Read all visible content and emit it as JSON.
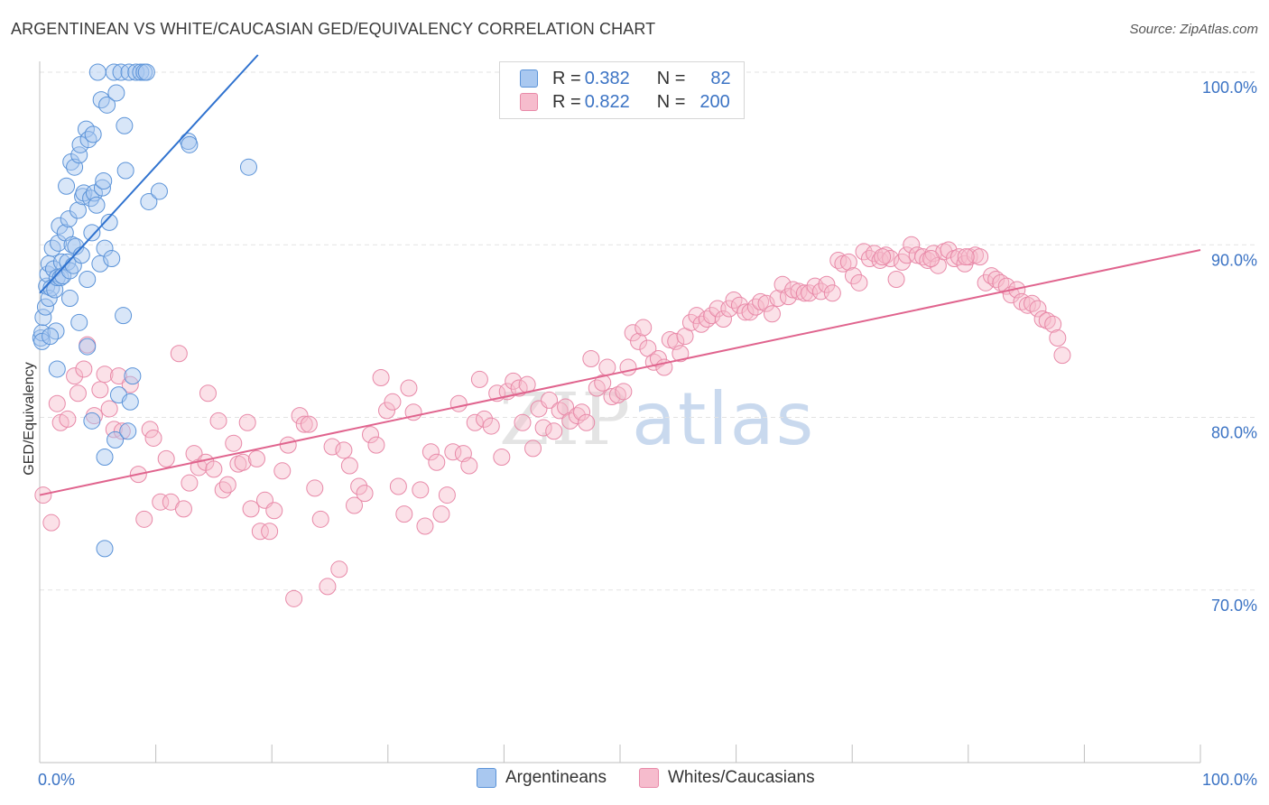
{
  "header": {
    "title": "ARGENTINEAN VS WHITE/CAUCASIAN GED/EQUIVALENCY CORRELATION CHART",
    "source": "Source: ZipAtlas.com"
  },
  "watermark": {
    "zip": "ZIP",
    "atlas": "atlas"
  },
  "legend": {
    "rows": [
      {
        "r_label": "R = ",
        "r_value": "0.382",
        "n_label": "N = ",
        "n_value": "82"
      },
      {
        "r_label": "R = ",
        "r_value": "0.822",
        "n_label": "N = ",
        "n_value": "200"
      }
    ]
  },
  "bottom_legend": {
    "series_a": "Argentineans",
    "series_b": "Whites/Caucasians"
  },
  "colors": {
    "blue_fill": "#a9c8f0",
    "blue_stroke": "#5b93d8",
    "blue_line": "#2f72cf",
    "pink_fill": "#f6bccd",
    "pink_stroke": "#e889a8",
    "pink_line": "#e0648e",
    "grid": "#e3e3e3",
    "tick_text": "#3b73c4"
  },
  "chart_data": {
    "type": "scatter",
    "title": "ARGENTINEAN VS WHITE/CAUCASIAN GED/EQUIVALENCY CORRELATION CHART",
    "xlabel": "",
    "ylabel": "GED/Equivalency",
    "xlim": [
      0,
      100
    ],
    "ylim": [
      60,
      100
    ],
    "x_tick_labels": {
      "min": "0.0%",
      "max": "100.0%"
    },
    "y_ticks": [
      {
        "value": 100,
        "label": "100.0%"
      },
      {
        "value": 90,
        "label": "90.0%"
      },
      {
        "value": 80,
        "label": "80.0%"
      },
      {
        "value": 70,
        "label": "70.0%"
      }
    ],
    "grid": true,
    "legend_position": "top-center",
    "series": [
      {
        "name": "Argentineans",
        "r": 0.382,
        "n": 82,
        "trend": {
          "x0": 0,
          "y0": 87.2,
          "x1": 18.8,
          "y1": 101.0
        },
        "points": [
          [
            0.1,
            84.6
          ],
          [
            0.2,
            84.9
          ],
          [
            0.3,
            85.8
          ],
          [
            0.5,
            86.4
          ],
          [
            0.6,
            87.6
          ],
          [
            0.7,
            88.3
          ],
          [
            0.8,
            88.9
          ],
          [
            0.8,
            86.9
          ],
          [
            1.0,
            87.5
          ],
          [
            1.1,
            89.8
          ],
          [
            1.2,
            88.6
          ],
          [
            1.3,
            87.4
          ],
          [
            1.5,
            88.1
          ],
          [
            1.6,
            90.1
          ],
          [
            1.7,
            91.1
          ],
          [
            1.8,
            88.1
          ],
          [
            1.9,
            89.0
          ],
          [
            2.0,
            88.2
          ],
          [
            2.2,
            90.7
          ],
          [
            2.3,
            93.4
          ],
          [
            2.4,
            89.0
          ],
          [
            2.5,
            91.5
          ],
          [
            2.6,
            88.5
          ],
          [
            2.7,
            94.8
          ],
          [
            2.8,
            90.0
          ],
          [
            2.9,
            88.8
          ],
          [
            3.0,
            94.5
          ],
          [
            3.1,
            89.9
          ],
          [
            3.3,
            92.0
          ],
          [
            3.4,
            95.2
          ],
          [
            3.5,
            95.8
          ],
          [
            3.6,
            89.4
          ],
          [
            3.7,
            92.8
          ],
          [
            3.8,
            93.0
          ],
          [
            4.0,
            96.7
          ],
          [
            4.1,
            88.0
          ],
          [
            4.2,
            96.1
          ],
          [
            4.4,
            92.7
          ],
          [
            4.5,
            90.7
          ],
          [
            4.6,
            96.4
          ],
          [
            4.7,
            93.0
          ],
          [
            4.9,
            92.3
          ],
          [
            5.0,
            100.0
          ],
          [
            5.2,
            88.9
          ],
          [
            5.3,
            98.4
          ],
          [
            5.4,
            93.3
          ],
          [
            5.5,
            93.7
          ],
          [
            5.6,
            89.8
          ],
          [
            5.8,
            98.1
          ],
          [
            6.0,
            91.3
          ],
          [
            6.2,
            89.2
          ],
          [
            6.4,
            100.0
          ],
          [
            6.6,
            98.8
          ],
          [
            7.0,
            100.0
          ],
          [
            7.3,
            96.9
          ],
          [
            7.4,
            94.3
          ],
          [
            7.7,
            100.0
          ],
          [
            8.3,
            100.0
          ],
          [
            8.7,
            100.0
          ],
          [
            9.0,
            100.0
          ],
          [
            9.2,
            100.0
          ],
          [
            9.4,
            92.5
          ],
          [
            10.3,
            93.1
          ],
          [
            12.8,
            96.0
          ],
          [
            12.9,
            95.8
          ],
          [
            18.0,
            94.5
          ],
          [
            1.4,
            85.0
          ],
          [
            1.5,
            82.8
          ],
          [
            2.6,
            86.9
          ],
          [
            3.4,
            85.5
          ],
          [
            4.1,
            84.1
          ],
          [
            4.5,
            79.8
          ],
          [
            5.6,
            77.7
          ],
          [
            6.5,
            78.7
          ],
          [
            6.8,
            81.3
          ],
          [
            7.2,
            85.9
          ],
          [
            7.6,
            79.2
          ],
          [
            7.8,
            80.9
          ],
          [
            8.0,
            82.4
          ],
          [
            5.6,
            72.4
          ],
          [
            0.2,
            84.4
          ],
          [
            0.9,
            84.7
          ]
        ]
      },
      {
        "name": "Whites/Caucasians",
        "r": 0.822,
        "n": 200,
        "trend": {
          "x0": 0,
          "y0": 75.5,
          "x1": 100,
          "y1": 89.7
        },
        "points": [
          [
            0.3,
            75.5
          ],
          [
            1.0,
            73.9
          ],
          [
            1.5,
            80.8
          ],
          [
            1.8,
            79.7
          ],
          [
            2.4,
            79.9
          ],
          [
            3.0,
            82.4
          ],
          [
            3.3,
            81.4
          ],
          [
            3.8,
            82.8
          ],
          [
            4.1,
            84.2
          ],
          [
            4.7,
            80.1
          ],
          [
            5.2,
            81.6
          ],
          [
            5.6,
            82.5
          ],
          [
            6.0,
            80.5
          ],
          [
            6.4,
            79.3
          ],
          [
            6.8,
            82.4
          ],
          [
            7.1,
            79.2
          ],
          [
            7.8,
            81.9
          ],
          [
            8.5,
            76.7
          ],
          [
            9.0,
            74.1
          ],
          [
            9.5,
            79.3
          ],
          [
            9.8,
            78.8
          ],
          [
            10.4,
            75.1
          ],
          [
            10.9,
            77.6
          ],
          [
            11.3,
            75.1
          ],
          [
            12.0,
            83.7
          ],
          [
            12.4,
            74.7
          ],
          [
            12.9,
            76.2
          ],
          [
            13.3,
            77.9
          ],
          [
            13.7,
            77.1
          ],
          [
            14.3,
            77.4
          ],
          [
            14.5,
            81.4
          ],
          [
            15.0,
            77.0
          ],
          [
            15.4,
            79.8
          ],
          [
            15.8,
            75.8
          ],
          [
            16.2,
            76.1
          ],
          [
            16.7,
            78.5
          ],
          [
            17.1,
            77.3
          ],
          [
            17.5,
            77.4
          ],
          [
            17.9,
            79.7
          ],
          [
            18.2,
            74.7
          ],
          [
            18.7,
            77.6
          ],
          [
            19.0,
            73.4
          ],
          [
            19.4,
            75.2
          ],
          [
            19.8,
            73.4
          ],
          [
            20.2,
            74.6
          ],
          [
            20.9,
            76.9
          ],
          [
            21.4,
            78.4
          ],
          [
            21.9,
            69.5
          ],
          [
            22.4,
            80.1
          ],
          [
            22.8,
            79.6
          ],
          [
            23.2,
            79.6
          ],
          [
            23.7,
            75.9
          ],
          [
            24.2,
            74.1
          ],
          [
            24.8,
            70.2
          ],
          [
            25.2,
            78.3
          ],
          [
            25.8,
            71.2
          ],
          [
            26.2,
            78.1
          ],
          [
            26.7,
            77.2
          ],
          [
            27.1,
            74.9
          ],
          [
            27.5,
            76.0
          ],
          [
            28.0,
            75.6
          ],
          [
            28.5,
            79.0
          ],
          [
            29.0,
            78.4
          ],
          [
            29.4,
            82.3
          ],
          [
            29.9,
            80.4
          ],
          [
            30.4,
            80.9
          ],
          [
            30.9,
            76.0
          ],
          [
            31.4,
            74.4
          ],
          [
            31.8,
            81.7
          ],
          [
            32.2,
            80.3
          ],
          [
            32.8,
            75.8
          ],
          [
            33.2,
            73.7
          ],
          [
            33.7,
            78.0
          ],
          [
            34.2,
            77.4
          ],
          [
            34.6,
            74.4
          ],
          [
            35.1,
            75.5
          ],
          [
            35.6,
            78.0
          ],
          [
            36.1,
            80.8
          ],
          [
            36.5,
            77.9
          ],
          [
            37.0,
            77.2
          ],
          [
            37.5,
            79.7
          ],
          [
            37.9,
            82.2
          ],
          [
            38.3,
            79.9
          ],
          [
            38.9,
            79.5
          ],
          [
            39.4,
            81.4
          ],
          [
            39.8,
            77.7
          ],
          [
            40.3,
            81.5
          ],
          [
            40.8,
            82.1
          ],
          [
            41.3,
            81.7
          ],
          [
            41.6,
            79.7
          ],
          [
            42.0,
            81.9
          ],
          [
            42.5,
            78.2
          ],
          [
            43.0,
            80.5
          ],
          [
            43.4,
            79.4
          ],
          [
            43.9,
            81.0
          ],
          [
            44.3,
            79.2
          ],
          [
            44.8,
            80.4
          ],
          [
            45.3,
            80.6
          ],
          [
            45.7,
            79.8
          ],
          [
            46.3,
            80.1
          ],
          [
            46.7,
            80.3
          ],
          [
            47.1,
            79.7
          ],
          [
            47.5,
            83.4
          ],
          [
            48.0,
            81.7
          ],
          [
            48.5,
            82.0
          ],
          [
            48.9,
            82.9
          ],
          [
            49.3,
            81.2
          ],
          [
            49.8,
            81.3
          ],
          [
            50.3,
            81.5
          ],
          [
            50.7,
            82.9
          ],
          [
            51.1,
            84.9
          ],
          [
            51.6,
            84.4
          ],
          [
            52.0,
            85.2
          ],
          [
            52.4,
            84.0
          ],
          [
            52.9,
            83.2
          ],
          [
            53.3,
            83.4
          ],
          [
            53.8,
            82.9
          ],
          [
            54.3,
            84.5
          ],
          [
            54.8,
            84.4
          ],
          [
            55.2,
            83.7
          ],
          [
            55.6,
            84.7
          ],
          [
            56.1,
            85.5
          ],
          [
            56.6,
            85.9
          ],
          [
            57.0,
            85.4
          ],
          [
            57.5,
            85.7
          ],
          [
            57.9,
            85.9
          ],
          [
            58.4,
            86.3
          ],
          [
            58.9,
            85.7
          ],
          [
            59.4,
            86.3
          ],
          [
            59.8,
            86.8
          ],
          [
            60.3,
            86.5
          ],
          [
            60.8,
            86.1
          ],
          [
            61.2,
            86.1
          ],
          [
            61.7,
            86.4
          ],
          [
            62.1,
            86.7
          ],
          [
            62.6,
            86.6
          ],
          [
            63.1,
            86.0
          ],
          [
            63.6,
            86.9
          ],
          [
            64.0,
            87.7
          ],
          [
            64.5,
            87.0
          ],
          [
            64.9,
            87.4
          ],
          [
            65.4,
            87.3
          ],
          [
            65.9,
            87.2
          ],
          [
            66.3,
            87.2
          ],
          [
            66.8,
            87.6
          ],
          [
            67.3,
            87.3
          ],
          [
            67.8,
            87.7
          ],
          [
            68.3,
            87.2
          ],
          [
            68.8,
            89.1
          ],
          [
            69.2,
            88.9
          ],
          [
            69.7,
            89.0
          ],
          [
            70.1,
            88.2
          ],
          [
            70.6,
            87.8
          ],
          [
            71.0,
            89.6
          ],
          [
            71.5,
            89.2
          ],
          [
            71.9,
            89.5
          ],
          [
            72.4,
            89.1
          ],
          [
            72.9,
            89.4
          ],
          [
            73.3,
            89.2
          ],
          [
            73.8,
            88.0
          ],
          [
            74.3,
            89.0
          ],
          [
            74.7,
            89.4
          ],
          [
            75.1,
            90.0
          ],
          [
            75.6,
            89.4
          ],
          [
            76.1,
            89.3
          ],
          [
            76.5,
            89.1
          ],
          [
            77.0,
            89.5
          ],
          [
            77.4,
            88.8
          ],
          [
            77.9,
            89.6
          ],
          [
            78.3,
            89.7
          ],
          [
            78.8,
            89.2
          ],
          [
            79.2,
            89.3
          ],
          [
            79.7,
            88.9
          ],
          [
            80.1,
            89.3
          ],
          [
            80.6,
            89.4
          ],
          [
            81.0,
            89.3
          ],
          [
            81.5,
            87.8
          ],
          [
            82.0,
            88.2
          ],
          [
            82.4,
            88.0
          ],
          [
            82.8,
            87.8
          ],
          [
            83.3,
            87.6
          ],
          [
            83.7,
            87.1
          ],
          [
            84.2,
            87.4
          ],
          [
            84.6,
            86.7
          ],
          [
            85.1,
            86.5
          ],
          [
            85.5,
            86.6
          ],
          [
            86.0,
            86.3
          ],
          [
            86.4,
            85.7
          ],
          [
            86.8,
            85.6
          ],
          [
            87.3,
            85.4
          ],
          [
            87.7,
            84.6
          ],
          [
            88.1,
            83.6
          ],
          [
            79.8,
            89.3
          ],
          [
            76.8,
            89.2
          ],
          [
            72.6,
            89.3
          ]
        ]
      }
    ]
  }
}
